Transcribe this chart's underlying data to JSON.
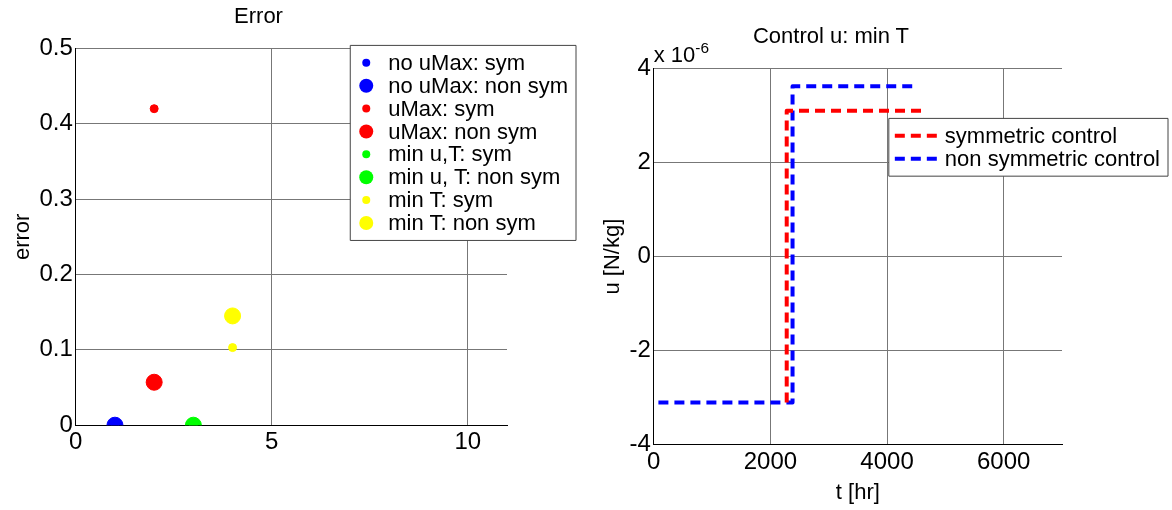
{
  "chart_data": [
    {
      "type": "scatter",
      "title": "Error",
      "ylabel": "error",
      "xlim": [
        0,
        11
      ],
      "xticks": [
        0,
        5,
        10
      ],
      "ylim": [
        0,
        0.5
      ],
      "yticks": [
        0,
        0.1,
        0.2,
        0.3,
        0.4,
        0.5
      ],
      "grid": true,
      "legend": "top right",
      "marker": "circle",
      "series": [
        {
          "name": "no uMax: sym",
          "color": "#0000ff",
          "x": [
            1
          ],
          "values": [
            0
          ]
        },
        {
          "name": "no uMax: non sym",
          "color": "#0000ff",
          "x": [
            1
          ],
          "values": [
            0
          ]
        },
        {
          "name": "uMax: sym",
          "color": "#ff0000",
          "x": [
            2
          ],
          "values": [
            0.42
          ]
        },
        {
          "name": "uMax: non sym",
          "color": "#ff0000",
          "x": [
            2
          ],
          "values": [
            0.057
          ]
        },
        {
          "name": "min u,T: sym",
          "color": "#00ff00",
          "x": [
            3
          ],
          "values": [
            0
          ]
        },
        {
          "name": "min u, T: non sym",
          "color": "#00ff00",
          "x": [
            3
          ],
          "values": [
            0
          ]
        },
        {
          "name": "min T: sym",
          "color": "#ffff00",
          "x": [
            4
          ],
          "values": [
            0.103
          ]
        },
        {
          "name": "min T: non sym",
          "color": "#ffff00",
          "x": [
            4
          ],
          "values": [
            0.145
          ]
        }
      ]
    },
    {
      "type": "line",
      "title": "Control u: min T",
      "xlabel": "t [hr]",
      "ylabel": "u [N/kg]",
      "annotations": [
        "x 10$^{-6}$"
      ],
      "xlim": [
        0,
        7000
      ],
      "xticks": [
        0,
        2000,
        4000,
        6000
      ],
      "ylim": [
        -4,
        4
      ],
      "yticks": [
        -4,
        -2,
        0,
        2,
        4
      ],
      "grid": true,
      "legend": "top right",
      "line_style": "dashed",
      "marker": "none",
      "series": [
        {
          "name": "symmetric control",
          "color": "#ff0000",
          "x": [
            2280,
            2280,
            4590
          ],
          "values": [
            -3.1,
            3.1,
            3.1
          ]
        },
        {
          "name": "non symmetric control",
          "color": "#0000ff",
          "x": [
            80,
            2380,
            2380,
            4440
          ],
          "values": [
            -3.1,
            -3.1,
            3.62,
            3.62
          ]
        }
      ]
    }
  ]
}
